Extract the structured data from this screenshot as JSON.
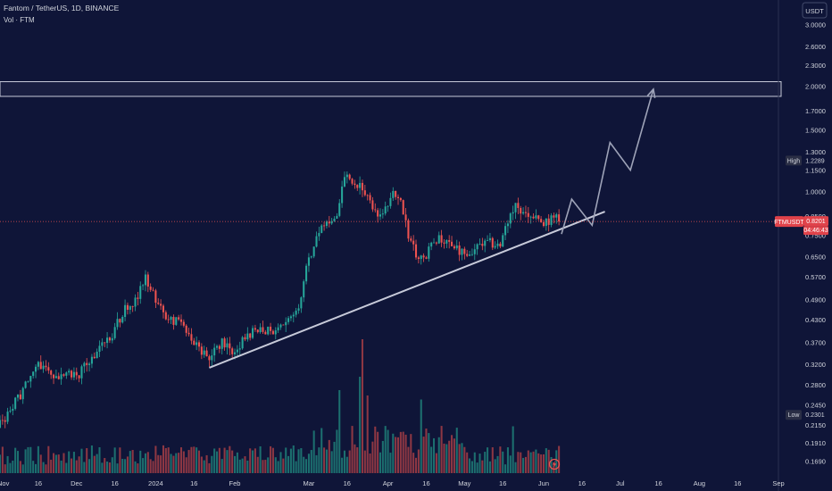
{
  "header": {
    "symbol": "Fantom / TetherUS, 1D, BINANCE",
    "indicator": "Vol · FTM",
    "currency": "USDT"
  },
  "colors": {
    "background": "#0f1538",
    "up": "#26a69a",
    "down": "#ef5350",
    "volume_up": "#1f7f79",
    "volume_down": "#a33d45",
    "drawing": "#c7cad9",
    "price_line": "#ef5350",
    "axis_text": "#d1d4dc"
  },
  "chart_data": {
    "type": "candlestick",
    "y_scale": "log",
    "ylim": [
      0.16,
      3.1
    ],
    "y_ticks": [
      "3.0000",
      "2.6000",
      "2.3000",
      "2.0000",
      "1.7000",
      "1.5000",
      "1.3000",
      "1.1500",
      "1.0000",
      "0.8500",
      "0.7500",
      "0.6500",
      "0.5700",
      "0.4900",
      "0.4300",
      "0.3700",
      "0.3200",
      "0.2800",
      "0.2450",
      "0.2150",
      "0.1910",
      "0.1690"
    ],
    "x_ticks": [
      "Nov",
      "16",
      "Dec",
      "16",
      "2024",
      "16",
      "Feb",
      "Mar",
      "16",
      "Apr",
      "16",
      "May",
      "16",
      "Jun",
      "16",
      "Jul",
      "16",
      "Aug",
      "16",
      "Sep"
    ],
    "x_range": [
      "2023-11-01",
      "2024-09-01"
    ],
    "labels": {
      "high": {
        "text": "High",
        "value": "1.2289"
      },
      "last": {
        "text": "FTMUSDT",
        "value": "0.8201",
        "countdown": "04:46:43"
      },
      "low": {
        "text": "Low",
        "value": "0.2301"
      }
    },
    "resistance_zone": [
      1.87,
      2.06
    ],
    "trendline": [
      {
        "date": "2024-01-22",
        "price": 0.313
      },
      {
        "date": "2024-06-25",
        "price": 0.875
      }
    ],
    "projection": [
      {
        "date": "2024-06-08",
        "price": 0.755
      },
      {
        "date": "2024-06-12",
        "price": 0.95
      },
      {
        "date": "2024-06-20",
        "price": 0.8
      },
      {
        "date": "2024-06-27",
        "price": 1.38
      },
      {
        "date": "2024-07-05",
        "price": 1.15
      },
      {
        "date": "2024-07-14",
        "price": 1.96
      }
    ],
    "anchors": [
      {
        "date": "2023-11-01",
        "price": 0.215
      },
      {
        "date": "2023-11-08",
        "price": 0.255
      },
      {
        "date": "2023-11-16",
        "price": 0.32
      },
      {
        "date": "2023-11-21",
        "price": 0.295
      },
      {
        "date": "2023-11-26",
        "price": 0.3
      },
      {
        "date": "2023-12-02",
        "price": 0.3
      },
      {
        "date": "2023-12-09",
        "price": 0.35
      },
      {
        "date": "2023-12-14",
        "price": 0.38
      },
      {
        "date": "2023-12-19",
        "price": 0.45
      },
      {
        "date": "2023-12-24",
        "price": 0.49
      },
      {
        "date": "2023-12-28",
        "price": 0.56
      },
      {
        "date": "2024-01-02",
        "price": 0.47
      },
      {
        "date": "2024-01-05",
        "price": 0.44
      },
      {
        "date": "2024-01-10",
        "price": 0.42
      },
      {
        "date": "2024-01-14",
        "price": 0.39
      },
      {
        "date": "2024-01-18",
        "price": 0.36
      },
      {
        "date": "2024-01-22",
        "price": 0.33
      },
      {
        "date": "2024-01-27",
        "price": 0.37
      },
      {
        "date": "2024-02-01",
        "price": 0.35
      },
      {
        "date": "2024-02-06",
        "price": 0.39
      },
      {
        "date": "2024-02-11",
        "price": 0.4
      },
      {
        "date": "2024-02-16",
        "price": 0.4
      },
      {
        "date": "2024-02-21",
        "price": 0.41
      },
      {
        "date": "2024-02-26",
        "price": 0.46
      },
      {
        "date": "2024-02-29",
        "price": 0.6
      },
      {
        "date": "2024-03-04",
        "price": 0.75
      },
      {
        "date": "2024-03-08",
        "price": 0.8
      },
      {
        "date": "2024-03-12",
        "price": 0.85
      },
      {
        "date": "2024-03-14",
        "price": 1.05
      },
      {
        "date": "2024-03-17",
        "price": 1.1
      },
      {
        "date": "2024-03-20",
        "price": 1.05
      },
      {
        "date": "2024-03-24",
        "price": 0.98
      },
      {
        "date": "2024-03-28",
        "price": 0.85
      },
      {
        "date": "2024-04-01",
        "price": 0.9
      },
      {
        "date": "2024-04-03",
        "price": 1.0
      },
      {
        "date": "2024-04-06",
        "price": 0.93
      },
      {
        "date": "2024-04-09",
        "price": 0.75
      },
      {
        "date": "2024-04-13",
        "price": 0.62
      },
      {
        "date": "2024-04-17",
        "price": 0.68
      },
      {
        "date": "2024-04-21",
        "price": 0.74
      },
      {
        "date": "2024-04-25",
        "price": 0.72
      },
      {
        "date": "2024-04-29",
        "price": 0.67
      },
      {
        "date": "2024-05-03",
        "price": 0.66
      },
      {
        "date": "2024-05-07",
        "price": 0.7
      },
      {
        "date": "2024-05-11",
        "price": 0.71
      },
      {
        "date": "2024-05-15",
        "price": 0.7
      },
      {
        "date": "2024-05-18",
        "price": 0.82
      },
      {
        "date": "2024-05-21",
        "price": 0.9
      },
      {
        "date": "2024-05-24",
        "price": 0.86
      },
      {
        "date": "2024-05-28",
        "price": 0.84
      },
      {
        "date": "2024-06-01",
        "price": 0.8
      },
      {
        "date": "2024-06-05",
        "price": 0.85
      },
      {
        "date": "2024-06-07",
        "price": 0.8201
      }
    ],
    "volume_peaks": [
      {
        "date": "2024-03-13",
        "level": 0.62
      },
      {
        "date": "2024-03-21",
        "level": 0.72
      },
      {
        "date": "2024-03-22",
        "level": 1.0
      },
      {
        "date": "2024-03-24",
        "level": 0.58
      },
      {
        "date": "2024-04-14",
        "level": 0.55
      },
      {
        "date": "2024-05-20",
        "level": 0.35
      }
    ]
  }
}
